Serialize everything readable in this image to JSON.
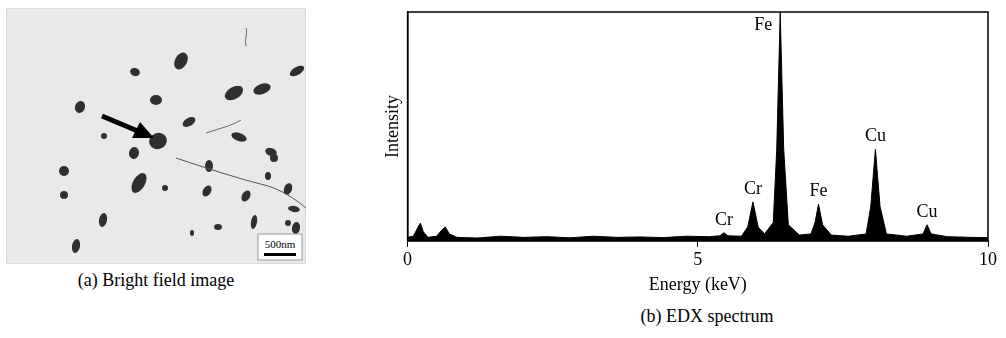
{
  "figure": {
    "panel_a": {
      "caption": "(a) Bright field image",
      "scale_bar": "500nm"
    },
    "panel_b": {
      "caption": "(b) EDX spectrum"
    }
  },
  "chart_data": {
    "type": "area",
    "color": "#000000",
    "x_label": "Energy (keV)",
    "y_label": "Intensity",
    "x": [
      0,
      0.1,
      0.18,
      0.22,
      0.27,
      0.35,
      0.5,
      0.6,
      0.65,
      0.72,
      0.85,
      1.2,
      1.6,
      2.0,
      2.4,
      2.8,
      3.2,
      3.6,
      4.0,
      4.4,
      4.8,
      5.2,
      5.38,
      5.45,
      5.52,
      5.75,
      5.86,
      5.95,
      6.04,
      6.15,
      6.3,
      6.36,
      6.42,
      6.48,
      6.56,
      6.75,
      6.95,
      7.02,
      7.08,
      7.15,
      7.3,
      7.6,
      7.9,
      7.98,
      8.06,
      8.14,
      8.25,
      8.6,
      8.88,
      8.95,
      9.02,
      9.3,
      9.7,
      10
    ],
    "values": [
      1.5,
      2,
      6,
      7.7,
      4,
      1.5,
      2,
      5,
      6,
      3,
      1.5,
      1.2,
      2,
      1.5,
      1.8,
      1.3,
      2,
      1.5,
      1.7,
      1.4,
      2,
      1.8,
      2.2,
      3.5,
      2.2,
      2,
      6,
      17,
      6,
      3,
      8,
      40,
      100,
      40,
      7,
      2.5,
      3,
      8,
      16,
      7,
      2.5,
      2,
      3,
      15,
      40,
      15,
      3,
      2,
      3,
      7,
      3,
      1.8,
      1.5,
      1.4
    ],
    "xlim": [
      0,
      10
    ],
    "xticks": [
      0,
      5,
      10
    ],
    "ylim": [
      0,
      100
    ],
    "tick_labels": "x",
    "grid": false,
    "annotations": [
      {
        "text": "Cr",
        "x": 5.45,
        "y": 3.5
      },
      {
        "text": "Cr",
        "x": 5.95,
        "y": 17
      },
      {
        "text": "Fe",
        "x": 6.42,
        "y": 100
      },
      {
        "text": "Fe",
        "x": 7.08,
        "y": 16
      },
      {
        "text": "Cu",
        "x": 8.06,
        "y": 40
      },
      {
        "text": "Cu",
        "x": 8.95,
        "y": 7
      }
    ]
  }
}
